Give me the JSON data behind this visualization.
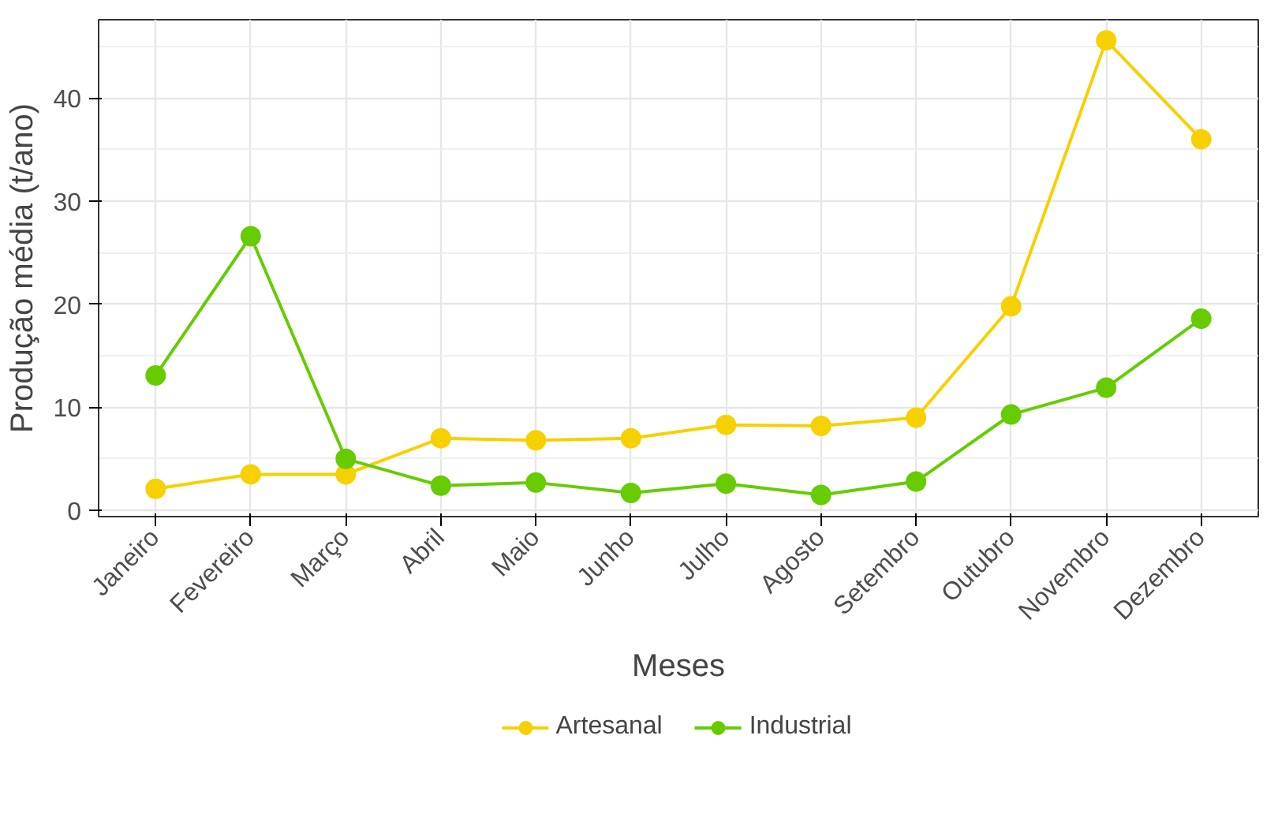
{
  "chart_data": {
    "type": "line",
    "xlabel": "Meses",
    "ylabel": "Produção média (t/ano)",
    "categories": [
      "Janeiro",
      "Fevereiro",
      "Março",
      "Abril",
      "Maio",
      "Junho",
      "Julho",
      "Agosto",
      "Setembro",
      "Outubro",
      "Novembro",
      "Dezembro"
    ],
    "series": [
      {
        "name": "Artesanal",
        "color": "#f7d000",
        "values": [
          2.1,
          3.5,
          3.5,
          7.0,
          6.8,
          7.0,
          8.3,
          8.2,
          9.0,
          19.8,
          45.6,
          36.0
        ]
      },
      {
        "name": "Industrial",
        "color": "#66cc00",
        "values": [
          13.1,
          26.6,
          5.0,
          2.4,
          2.7,
          1.7,
          2.6,
          1.5,
          2.8,
          9.3,
          11.9,
          18.6
        ]
      }
    ],
    "ylim": [
      -0.6,
      47.6
    ],
    "yticks": [
      0,
      10,
      20,
      30,
      40
    ],
    "grid": true,
    "legend": "bottom",
    "marker": "circle",
    "line_style": "solid"
  }
}
